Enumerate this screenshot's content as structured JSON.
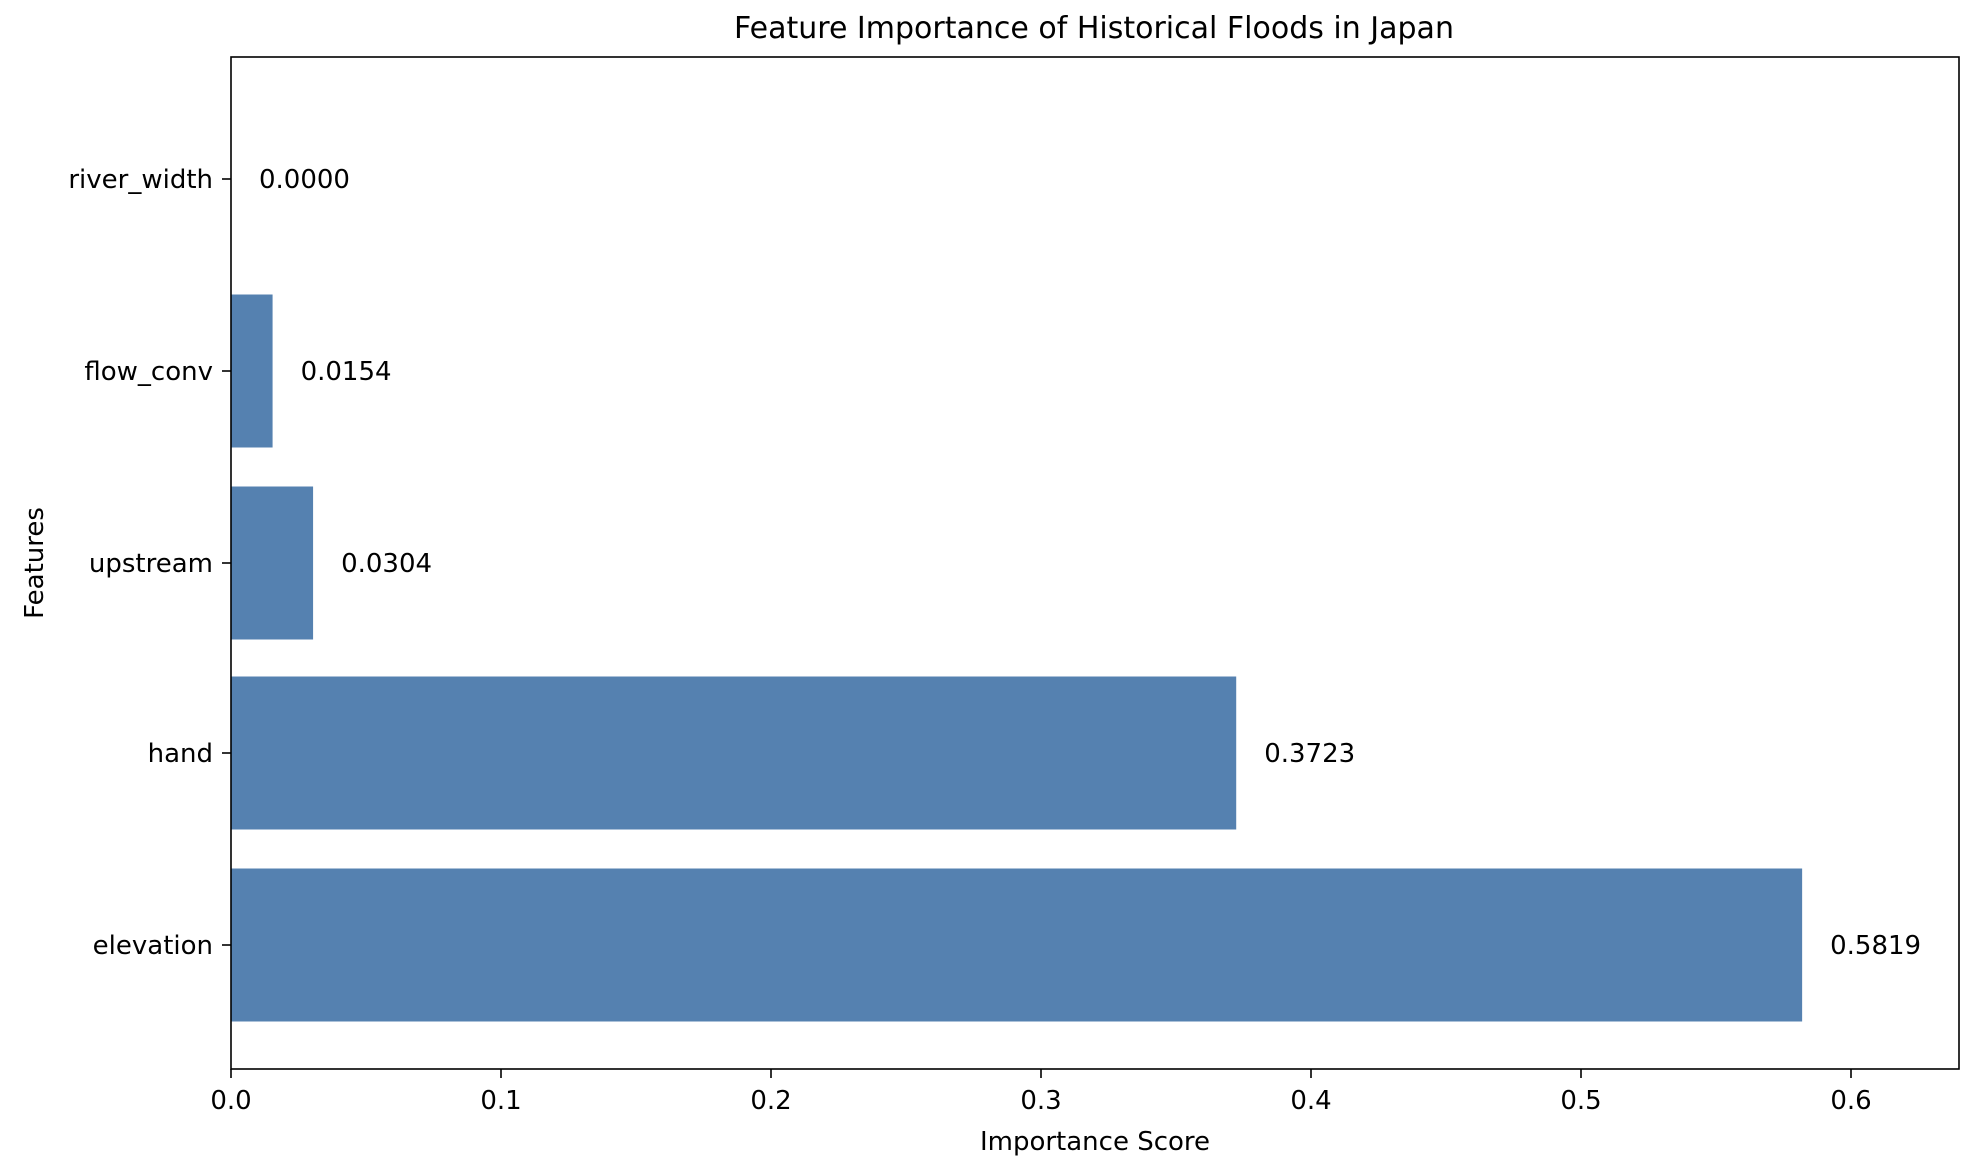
{
  "chart_data": {
    "type": "bar",
    "orientation": "horizontal",
    "title": "Feature Importance of Historical Floods in Japan",
    "xlabel": "Importance Score",
    "ylabel": "Features",
    "categories": [
      "elevation",
      "hand",
      "upstream",
      "flow_conv",
      "river_width"
    ],
    "values": [
      0.5819,
      0.3723,
      0.0304,
      0.0154,
      0.0
    ],
    "value_labels": [
      "0.5819",
      "0.3723",
      "0.0304",
      "0.0154",
      "0.0000"
    ],
    "xlim": [
      0,
      0.64
    ],
    "xticks": [
      0.0,
      0.1,
      0.2,
      0.3,
      0.4,
      0.5,
      0.6
    ],
    "xtick_labels": [
      "0.0",
      "0.1",
      "0.2",
      "0.3",
      "0.4",
      "0.5",
      "0.6"
    ],
    "bar_color": "#5581b0",
    "grid": false,
    "legend": "none"
  }
}
